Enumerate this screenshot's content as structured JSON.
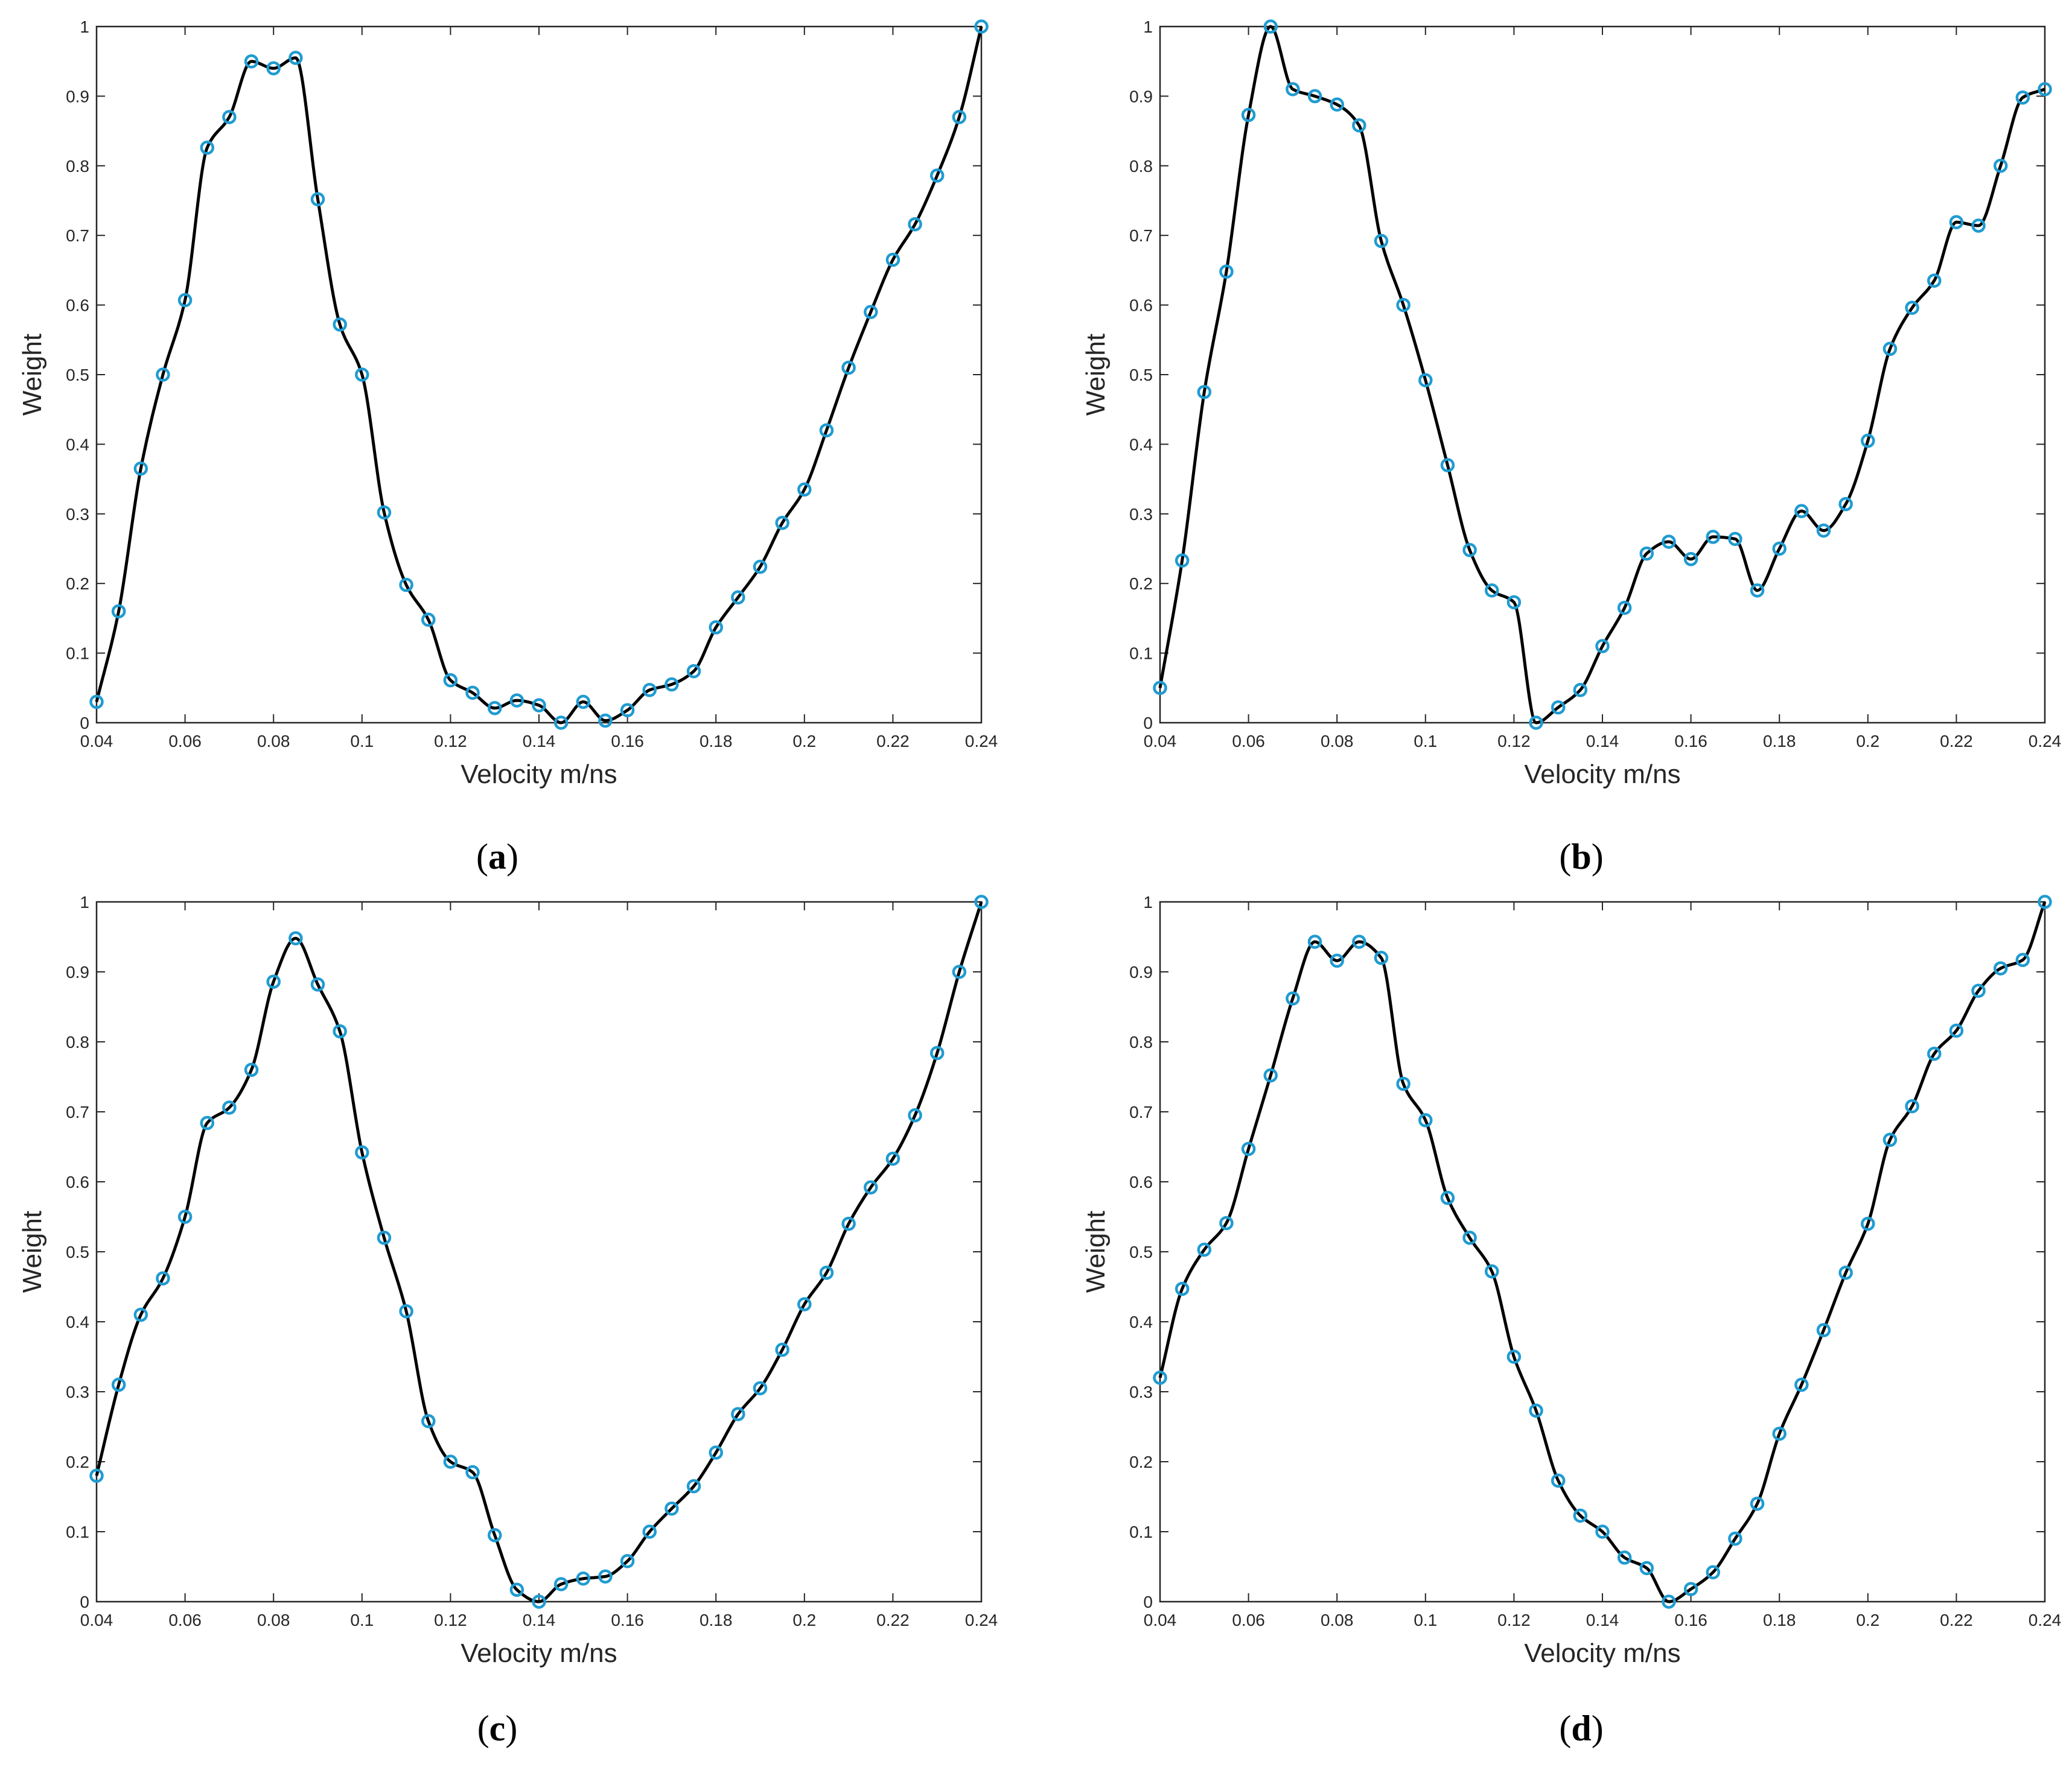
{
  "colors": {
    "line": "#000000",
    "marker": "#1f9bd1",
    "axis": "#262626",
    "background": "#ffffff"
  },
  "chart_data": [
    {
      "type": "line",
      "panel_label": "a",
      "xlabel": "Velocity m/ns",
      "ylabel": "Weight",
      "xlim": [
        0.04,
        0.24
      ],
      "ylim": [
        0,
        1
      ],
      "xticks": [
        "0.04",
        "0.06",
        "0.08",
        "0.1",
        "0.12",
        "0.14",
        "0.16",
        "0.18",
        "0.2",
        "0.22",
        "0.24"
      ],
      "yticks": [
        "0",
        "0.1",
        "0.2",
        "0.3",
        "0.4",
        "0.5",
        "0.6",
        "0.7",
        "0.8",
        "0.9",
        "1"
      ],
      "x": [
        0.04,
        0.045,
        0.05,
        0.055,
        0.06,
        0.065,
        0.07,
        0.075,
        0.08,
        0.085,
        0.09,
        0.095,
        0.1,
        0.105,
        0.11,
        0.115,
        0.12,
        0.125,
        0.13,
        0.135,
        0.14,
        0.145,
        0.15,
        0.155,
        0.16,
        0.165,
        0.17,
        0.175,
        0.18,
        0.185,
        0.19,
        0.195,
        0.2,
        0.205,
        0.21,
        0.215,
        0.22,
        0.225,
        0.23,
        0.235,
        0.24
      ],
      "y": [
        0.03,
        0.16,
        0.365,
        0.5,
        0.607,
        0.826,
        0.87,
        0.95,
        0.94,
        0.955,
        0.752,
        0.572,
        0.5,
        0.302,
        0.198,
        0.148,
        0.061,
        0.043,
        0.021,
        0.032,
        0.025,
        0.0,
        0.03,
        0.003,
        0.018,
        0.047,
        0.055,
        0.074,
        0.137,
        0.18,
        0.224,
        0.287,
        0.335,
        0.42,
        0.51,
        0.59,
        0.665,
        0.716,
        0.786,
        0.87,
        1.0
      ]
    },
    {
      "type": "line",
      "panel_label": "b",
      "xlabel": "Velocity m/ns",
      "ylabel": "Weight",
      "xlim": [
        0.04,
        0.24
      ],
      "ylim": [
        0,
        1
      ],
      "xticks": [
        "0.04",
        "0.06",
        "0.08",
        "0.1",
        "0.12",
        "0.14",
        "0.16",
        "0.18",
        "0.2",
        "0.22",
        "0.24"
      ],
      "yticks": [
        "0",
        "0.1",
        "0.2",
        "0.3",
        "0.4",
        "0.5",
        "0.6",
        "0.7",
        "0.8",
        "0.9",
        "1"
      ],
      "x": [
        0.04,
        0.045,
        0.05,
        0.055,
        0.06,
        0.065,
        0.07,
        0.075,
        0.08,
        0.085,
        0.09,
        0.095,
        0.1,
        0.105,
        0.11,
        0.115,
        0.12,
        0.125,
        0.13,
        0.135,
        0.14,
        0.145,
        0.15,
        0.155,
        0.16,
        0.165,
        0.17,
        0.175,
        0.18,
        0.185,
        0.19,
        0.195,
        0.2,
        0.205,
        0.21,
        0.215,
        0.22,
        0.225,
        0.23,
        0.235,
        0.24
      ],
      "y": [
        0.05,
        0.233,
        0.475,
        0.648,
        0.873,
        1.0,
        0.91,
        0.9,
        0.888,
        0.858,
        0.692,
        0.6,
        0.492,
        0.37,
        0.248,
        0.19,
        0.173,
        0.0,
        0.022,
        0.047,
        0.11,
        0.165,
        0.243,
        0.26,
        0.235,
        0.267,
        0.264,
        0.19,
        0.25,
        0.304,
        0.276,
        0.314,
        0.405,
        0.537,
        0.596,
        0.635,
        0.719,
        0.714,
        0.8,
        0.898,
        0.91
      ]
    },
    {
      "type": "line",
      "panel_label": "c",
      "xlabel": "Velocity m/ns",
      "ylabel": "Weight",
      "xlim": [
        0.04,
        0.24
      ],
      "ylim": [
        0,
        1
      ],
      "xticks": [
        "0.04",
        "0.06",
        "0.08",
        "0.1",
        "0.12",
        "0.14",
        "0.16",
        "0.18",
        "0.2",
        "0.22",
        "0.24"
      ],
      "yticks": [
        "0",
        "0.1",
        "0.2",
        "0.3",
        "0.4",
        "0.5",
        "0.6",
        "0.7",
        "0.8",
        "0.9",
        "1"
      ],
      "x": [
        0.04,
        0.045,
        0.05,
        0.055,
        0.06,
        0.065,
        0.07,
        0.075,
        0.08,
        0.085,
        0.09,
        0.095,
        0.1,
        0.105,
        0.11,
        0.115,
        0.12,
        0.125,
        0.13,
        0.135,
        0.14,
        0.145,
        0.15,
        0.155,
        0.16,
        0.165,
        0.17,
        0.175,
        0.18,
        0.185,
        0.19,
        0.195,
        0.2,
        0.205,
        0.21,
        0.215,
        0.22,
        0.225,
        0.23,
        0.235,
        0.24
      ],
      "y": [
        0.18,
        0.31,
        0.41,
        0.462,
        0.55,
        0.684,
        0.706,
        0.76,
        0.886,
        0.948,
        0.882,
        0.815,
        0.642,
        0.52,
        0.415,
        0.258,
        0.2,
        0.185,
        0.095,
        0.017,
        0.0,
        0.025,
        0.033,
        0.036,
        0.058,
        0.1,
        0.133,
        0.165,
        0.213,
        0.268,
        0.305,
        0.36,
        0.425,
        0.47,
        0.54,
        0.592,
        0.633,
        0.695,
        0.784,
        0.9,
        1.0
      ]
    },
    {
      "type": "line",
      "panel_label": "d",
      "xlabel": "Velocity m/ns",
      "ylabel": "Weight",
      "xlim": [
        0.04,
        0.24
      ],
      "ylim": [
        0,
        1
      ],
      "xticks": [
        "0.04",
        "0.06",
        "0.08",
        "0.1",
        "0.12",
        "0.14",
        "0.16",
        "0.18",
        "0.2",
        "0.22",
        "0.24"
      ],
      "yticks": [
        "0",
        "0.1",
        "0.2",
        "0.3",
        "0.4",
        "0.5",
        "0.6",
        "0.7",
        "0.8",
        "0.9",
        "1"
      ],
      "x": [
        0.04,
        0.045,
        0.05,
        0.055,
        0.06,
        0.065,
        0.07,
        0.075,
        0.08,
        0.085,
        0.09,
        0.095,
        0.1,
        0.105,
        0.11,
        0.115,
        0.12,
        0.125,
        0.13,
        0.135,
        0.14,
        0.145,
        0.15,
        0.155,
        0.16,
        0.165,
        0.17,
        0.175,
        0.18,
        0.185,
        0.19,
        0.195,
        0.2,
        0.205,
        0.21,
        0.215,
        0.22,
        0.225,
        0.23,
        0.235,
        0.24
      ],
      "y": [
        0.32,
        0.447,
        0.503,
        0.541,
        0.647,
        0.752,
        0.862,
        0.943,
        0.916,
        0.943,
        0.92,
        0.74,
        0.688,
        0.577,
        0.52,
        0.472,
        0.35,
        0.273,
        0.173,
        0.123,
        0.1,
        0.063,
        0.048,
        0.0,
        0.018,
        0.042,
        0.09,
        0.14,
        0.24,
        0.31,
        0.388,
        0.47,
        0.54,
        0.66,
        0.708,
        0.783,
        0.816,
        0.873,
        0.905,
        0.917,
        1.0
      ]
    }
  ]
}
